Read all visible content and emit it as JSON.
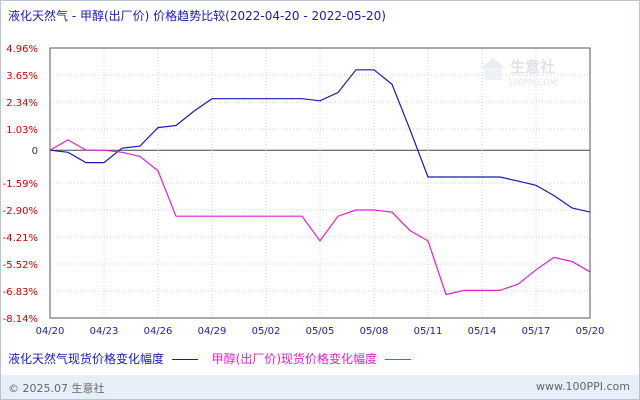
{
  "chart_data": {
    "type": "line",
    "title": "液化天然气 - 甲醇(出厂价) 价格趋势比较(2022-04-20 - 2022-05-20)",
    "x": [
      "04/20",
      "04/21",
      "04/22",
      "04/23",
      "04/24",
      "04/25",
      "04/26",
      "04/27",
      "04/28",
      "04/29",
      "04/30",
      "05/01",
      "05/02",
      "05/03",
      "05/04",
      "05/05",
      "05/06",
      "05/07",
      "05/08",
      "05/09",
      "05/10",
      "05/11",
      "05/12",
      "05/13",
      "05/14",
      "05/15",
      "05/16",
      "05/17",
      "05/18",
      "05/19",
      "05/20"
    ],
    "x_tick_labels": [
      "04/20",
      "04/23",
      "04/26",
      "04/29",
      "05/02",
      "05/05",
      "05/08",
      "05/11",
      "05/14",
      "05/17",
      "05/20"
    ],
    "y_tick_labels": [
      "4.96%",
      "3.65%",
      "2.34%",
      "1.03%",
      "0",
      "-1.59%",
      "-2.90%",
      "-4.21%",
      "-5.52%",
      "-6.83%",
      "-8.14%"
    ],
    "y_ticks": [
      4.96,
      3.65,
      2.34,
      1.03,
      0,
      -1.59,
      -2.9,
      -4.21,
      -5.52,
      -6.83,
      -8.14
    ],
    "ylim": [
      -8.14,
      4.96
    ],
    "grid": true,
    "legend": "bottom",
    "series": [
      {
        "name": "液化天然气现货价格变化幅度",
        "color": "#1a1ab8",
        "values": [
          0.0,
          -0.1,
          -0.6,
          -0.6,
          0.1,
          0.2,
          1.1,
          1.2,
          1.9,
          2.5,
          2.5,
          2.5,
          2.5,
          2.5,
          2.5,
          2.4,
          2.8,
          3.9,
          3.9,
          3.2,
          1.0,
          -1.3,
          -1.3,
          -1.3,
          -1.3,
          -1.3,
          -1.5,
          -1.7,
          -2.2,
          -2.8,
          -3.0
        ]
      },
      {
        "name": "甲醇(出厂价)现货价格变化幅度",
        "color": "#e020d0",
        "values": [
          0.0,
          0.5,
          0.0,
          0.0,
          -0.1,
          -0.3,
          -1.0,
          -3.2,
          -3.2,
          -3.2,
          -3.2,
          -3.2,
          -3.2,
          -3.2,
          -3.2,
          -4.4,
          -3.2,
          -2.9,
          -2.9,
          -3.0,
          -3.9,
          -4.4,
          -7.0,
          -6.8,
          -6.8,
          -6.8,
          -6.5,
          -5.8,
          -5.2,
          -5.4,
          -5.9
        ]
      }
    ]
  },
  "watermark": {
    "text": "生意社",
    "sub": "100PPI.COM"
  },
  "footer": {
    "left": "© 2025.07 生意社",
    "right": "www.100PPI.com"
  }
}
